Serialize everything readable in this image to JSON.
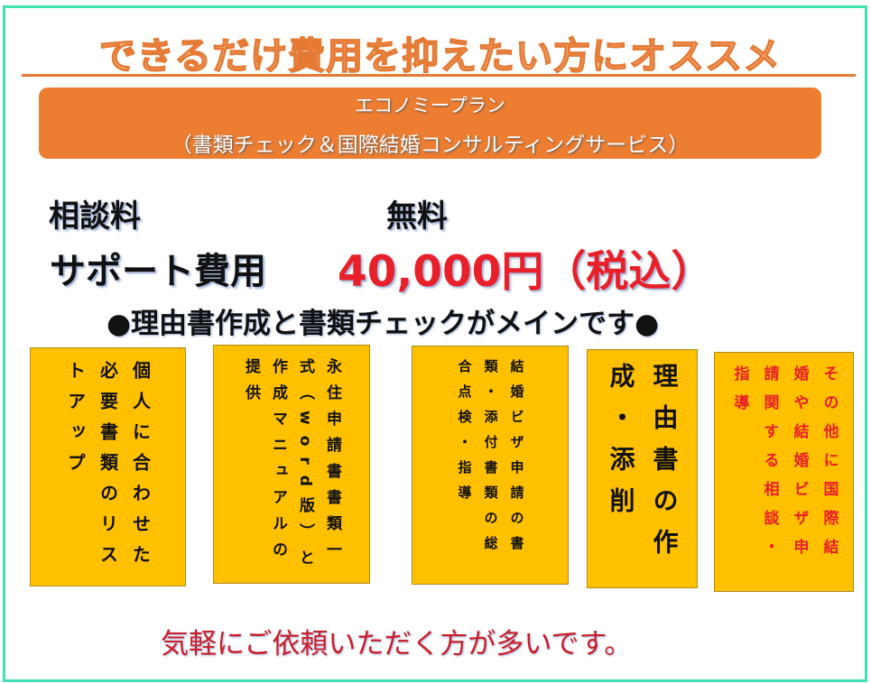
{
  "title": "できるだけ費用を抑えたい方にオススメ",
  "banner": {
    "plan_name": "エコノミープラン",
    "plan_detail": "（書類チェック＆国際結婚コンサルティングサービス）"
  },
  "pricing": {
    "consultation_label": "相談料",
    "consultation_value": "無料",
    "support_label": "サポート費用",
    "support_value": "40,000円（税込）"
  },
  "main_point": "●理由書作成と書類チェックがメインです●",
  "services": [
    {
      "text": "個人に合わせた必要書類のリストアップ"
    },
    {
      "text": "永住申請書書類一式（word版）と作成マニュアルの提供"
    },
    {
      "text": "結婚ビザ申請の書類・添付書類の総合点検・指導"
    },
    {
      "text": "理由書の作成・添削"
    },
    {
      "text": "その他に国際結婚や結婚ビザ申請関する相談・指導"
    }
  ],
  "footer": "気軽にご依頼いただく方が多いです。",
  "colors": {
    "accent_orange": "#ed7d31",
    "box_yellow": "#ffc000",
    "price_red": "#e8202a",
    "frame_teal": "#3fe0b2"
  }
}
